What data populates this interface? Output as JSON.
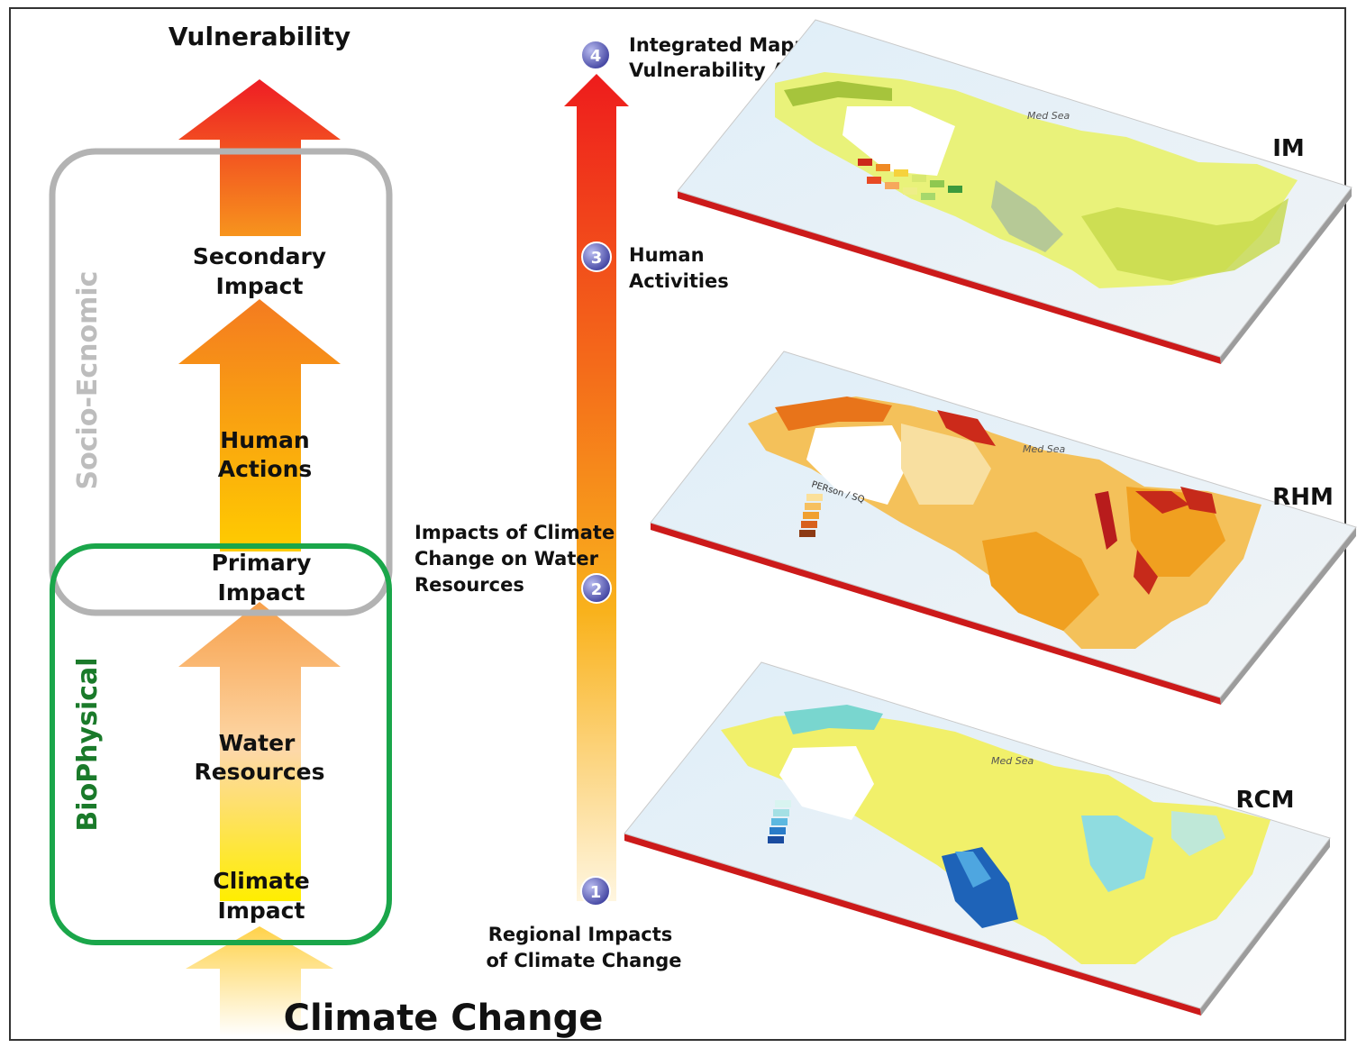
{
  "title": "Vulnerability",
  "footer": "Climate  Change",
  "groups": {
    "socio": "Socio-Ecnomic",
    "bio": "BioPhysical"
  },
  "stack": {
    "secondary_1": "Secondary",
    "secondary_2": "Impact",
    "human_1": "Human",
    "human_2": "Actions",
    "primary_1": "Primary",
    "primary_2": "Impact",
    "water_1": "Water",
    "water_2": "Resources",
    "climate_1": "Climate",
    "climate_2": "Impact"
  },
  "steps": [
    {
      "num": "1",
      "line1": "Regional Impacts",
      "line2": "of Climate Change"
    },
    {
      "num": "2",
      "line1": "Impacts of Climate",
      "line2": "Change on Water",
      "line3": "Resources"
    },
    {
      "num": "3",
      "line1": "Human",
      "line2": "Activities"
    },
    {
      "num": "4",
      "line1": "Integrated Mapping for",
      "line2": "Vulnerability Assessment"
    }
  ],
  "maps": {
    "im": {
      "label": "IM",
      "sea": "Med Sea"
    },
    "rhm": {
      "label": "RHM",
      "sea": "Med Sea",
      "legend_title": "PERson / SQ"
    },
    "rcm": {
      "label": "RCM",
      "sea": "Med Sea"
    }
  },
  "colors": {
    "bio_box": "#1aa64a",
    "socio_box": "#b3b3b3",
    "socio_text": "#bdbdbd",
    "bio_text": "#1a7a2a",
    "badge": "#5a5fbf",
    "map_edge": "#cc1a1a"
  }
}
